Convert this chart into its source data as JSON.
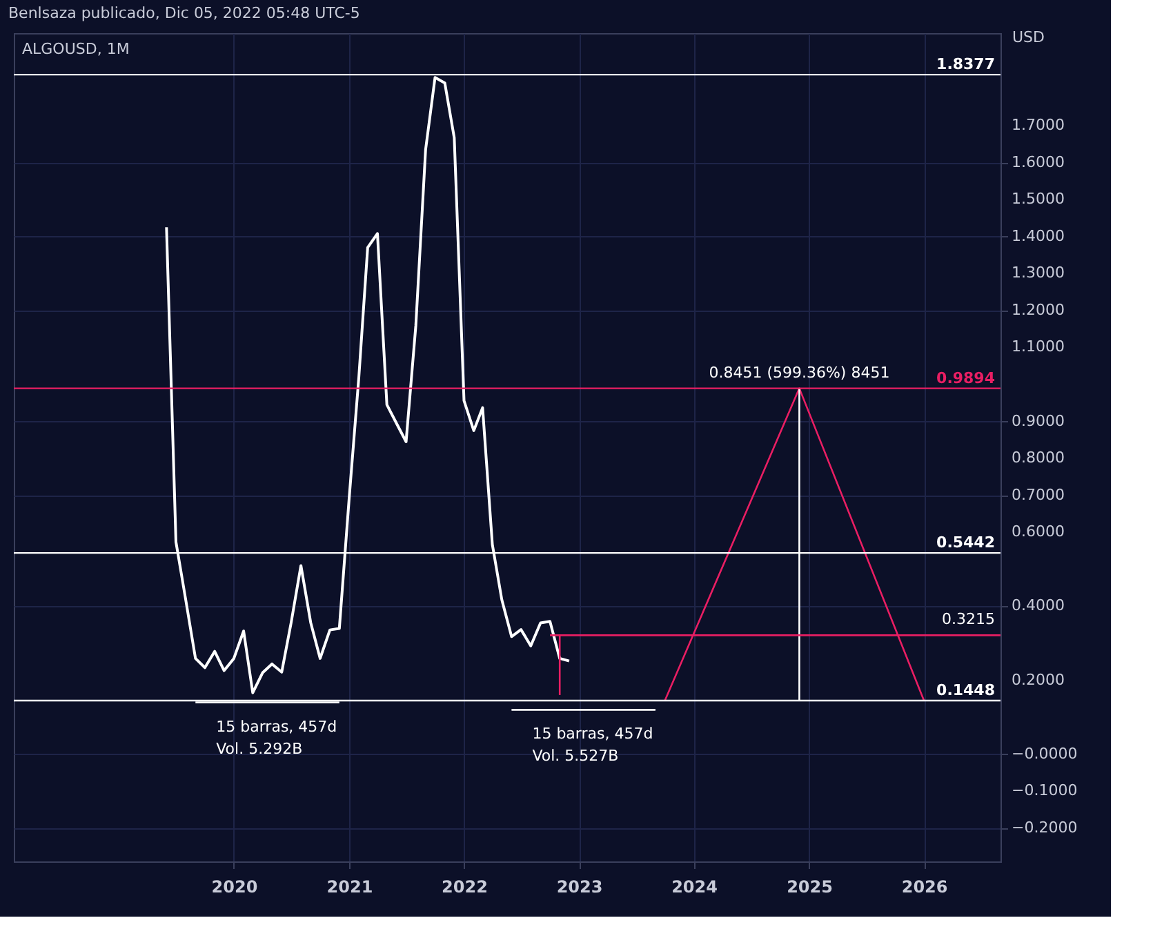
{
  "chart_data": {
    "type": "line",
    "title": "ALGOUSD, 1M",
    "ylabel": "USD",
    "annotations": [
      "Benlsaza publicado, Dic 05, 2022 05:48 UTC-5",
      {
        "text": "15 barras, 457d\nVol. 5.292B",
        "x": "2019-09",
        "y": 0.14
      },
      {
        "text": "15 barras, 457d\nVol. 5.527B",
        "x": "2022-06",
        "y": 0.12
      },
      {
        "text": "0.8451 (599.36%) 8451",
        "x": "2024-12",
        "y": 0.9894
      },
      {
        "text": "0.3215",
        "x": "2026-09",
        "y": 0.3215
      }
    ],
    "xlim": [
      "2018-02",
      "2026-09"
    ],
    "xticks": [
      {
        "value": "2020",
        "label": "2020"
      },
      {
        "value": "2021",
        "label": "2021"
      },
      {
        "value": "2022",
        "label": "2022"
      },
      {
        "value": "2023",
        "label": "2023"
      },
      {
        "value": "2024",
        "label": "2024"
      },
      {
        "value": "2025",
        "label": "2025"
      },
      {
        "value": "2026",
        "label": "2026"
      }
    ],
    "ylim": [
      -0.29,
      1.95
    ],
    "yticks": [
      {
        "value": 1.7,
        "label": "1.7000"
      },
      {
        "value": 1.6,
        "label": "1.6000"
      },
      {
        "value": 1.5,
        "label": "1.5000"
      },
      {
        "value": 1.4,
        "label": "1.4000"
      },
      {
        "value": 1.3,
        "label": "1.3000"
      },
      {
        "value": 1.2,
        "label": "1.2000"
      },
      {
        "value": 1.1,
        "label": "1.1000"
      },
      {
        "value": 0.9,
        "label": "0.9000"
      },
      {
        "value": 0.8,
        "label": "0.8000"
      },
      {
        "value": 0.7,
        "label": "0.7000"
      },
      {
        "value": 0.6,
        "label": "0.6000"
      },
      {
        "value": 0.4,
        "label": "0.4000"
      },
      {
        "value": 0.2,
        "label": "0.2000"
      },
      {
        "value": 0,
        "label": "−0.0000"
      },
      {
        "value": -0.1,
        "label": "−0.1000"
      },
      {
        "value": -0.2,
        "label": "−0.2000"
      }
    ],
    "grid": true,
    "marker": "none",
    "line_style": "solid",
    "x": [
      "2019-06",
      "2019-07",
      "2019-08",
      "2019-09",
      "2019-10",
      "2019-11",
      "2019-12",
      "2020-01",
      "2020-02",
      "2020-03",
      "2020-04",
      "2020-05",
      "2020-06",
      "2020-07",
      "2020-08",
      "2020-09",
      "2020-10",
      "2020-11",
      "2020-12",
      "2021-01",
      "2021-02",
      "2021-03",
      "2021-04",
      "2021-05",
      "2021-06",
      "2021-07",
      "2021-08",
      "2021-09",
      "2021-10",
      "2021-11",
      "2021-12",
      "2022-01",
      "2022-02",
      "2022-03",
      "2022-04",
      "2022-05",
      "2022-06",
      "2022-07",
      "2022-08",
      "2022-09",
      "2022-10",
      "2022-11",
      "2022-12"
    ],
    "series": [
      {
        "color": "#ffffff",
        "values": [
          1.425,
          0.574,
          0.418,
          0.259,
          0.234,
          0.278,
          0.226,
          0.259,
          0.333,
          0.166,
          0.22,
          0.244,
          0.222,
          0.356,
          0.51,
          0.356,
          0.259,
          0.336,
          0.34,
          0.69,
          1.02,
          1.37,
          1.408,
          0.945,
          0.894,
          0.845,
          1.16,
          1.635,
          1.83,
          1.815,
          1.667,
          0.956,
          0.875,
          0.937,
          0.567,
          0.418,
          0.318,
          0.337,
          0.293,
          0.355,
          0.359,
          0.259,
          0.252
        ]
      },
      {
        "type": "line",
        "color": "#e91e63",
        "x": [
          "2023-10",
          "2024-12",
          "2026-01"
        ],
        "values": [
          0.1448,
          0.9894,
          0.1448
        ]
      },
      {
        "type": "line",
        "color": "#ffffff",
        "x": [
          "2024-12",
          "2024-12"
        ],
        "values": [
          0.1448,
          0.9894
        ]
      },
      {
        "type": "line",
        "color": "#e91e63",
        "x": [
          "2022-10",
          "2026-09"
        ],
        "values": [
          0.3215,
          0.3215
        ]
      },
      {
        "type": "line",
        "color": "#e91e63",
        "x": [
          "2022-11",
          "2022-11"
        ],
        "values": [
          0.3215,
          0.16
        ]
      },
      {
        "type": "line",
        "color": "#ffffff",
        "x": [
          "2019-09",
          "2020-12"
        ],
        "values": [
          0.14,
          0.14
        ]
      },
      {
        "type": "line",
        "color": "#ffffff",
        "x": [
          "2022-06",
          "2023-09"
        ],
        "values": [
          0.12,
          0.12
        ]
      }
    ],
    "ref_lines": [
      {
        "axis": "y",
        "value": 1.8377,
        "label": "1.8377",
        "color": "#ffffff"
      },
      {
        "axis": "y",
        "value": 0.9894,
        "label": "0.9894",
        "color": "#e91e63"
      },
      {
        "axis": "y",
        "value": 0.5442,
        "label": "0.5442",
        "color": "#ffffff"
      },
      {
        "axis": "y",
        "value": 0.1448,
        "label": "0.1448",
        "color": "#ffffff"
      }
    ]
  }
}
